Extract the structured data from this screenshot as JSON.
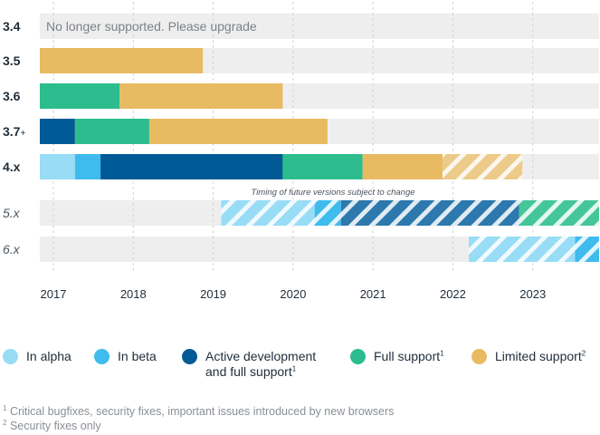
{
  "chart_data": {
    "type": "bar",
    "subtype": "timeline-gantt",
    "x_axis": {
      "ticks": [
        "2017",
        "2018",
        "2019",
        "2020",
        "2021",
        "2022",
        "2023"
      ],
      "range": [
        2016.83,
        2023.83
      ]
    },
    "grid": "vertical-dashed",
    "rows": [
      {
        "label": "3.4",
        "italic": false,
        "note": "No longer supported. Please upgrade",
        "segments": []
      },
      {
        "label": "3.5",
        "italic": false,
        "segments": [
          {
            "phase": "limited",
            "start": 2016.83,
            "end": 2018.87,
            "projected": false
          }
        ]
      },
      {
        "label": "3.6",
        "italic": false,
        "segments": [
          {
            "phase": "full",
            "start": 2016.83,
            "end": 2017.83,
            "projected": false
          },
          {
            "phase": "limited",
            "start": 2017.83,
            "end": 2019.87,
            "projected": false
          }
        ]
      },
      {
        "label": "3.7",
        "label_suffix": "+",
        "italic": false,
        "segments": [
          {
            "phase": "active",
            "start": 2016.83,
            "end": 2017.27,
            "projected": false
          },
          {
            "phase": "full",
            "start": 2017.27,
            "end": 2018.2,
            "projected": false
          },
          {
            "phase": "limited",
            "start": 2018.2,
            "end": 2020.43,
            "projected": false
          }
        ]
      },
      {
        "label": "4.x",
        "italic": false,
        "segments": [
          {
            "phase": "alpha",
            "start": 2016.83,
            "end": 2017.27,
            "projected": false
          },
          {
            "phase": "beta",
            "start": 2017.27,
            "end": 2017.59,
            "projected": false
          },
          {
            "phase": "active",
            "start": 2017.59,
            "end": 2019.87,
            "projected": false
          },
          {
            "phase": "full",
            "start": 2019.87,
            "end": 2020.87,
            "projected": false
          },
          {
            "phase": "limited",
            "start": 2020.87,
            "end": 2021.87,
            "projected": false
          },
          {
            "phase": "limited",
            "start": 2021.87,
            "end": 2022.87,
            "projected": true
          }
        ]
      },
      {
        "label": "5.x",
        "italic": true,
        "segments": [
          {
            "phase": "alpha",
            "start": 2019.1,
            "end": 2020.27,
            "projected": true
          },
          {
            "phase": "beta",
            "start": 2020.27,
            "end": 2020.6,
            "projected": true
          },
          {
            "phase": "active",
            "start": 2020.6,
            "end": 2022.83,
            "projected": true
          },
          {
            "phase": "full",
            "start": 2022.83,
            "end": 2023.83,
            "projected": true
          }
        ]
      },
      {
        "label": "6.x",
        "italic": true,
        "segments": [
          {
            "phase": "alpha",
            "start": 2022.2,
            "end": 2023.53,
            "projected": true
          },
          {
            "phase": "beta",
            "start": 2023.53,
            "end": 2023.83,
            "projected": true
          }
        ]
      }
    ],
    "annotation": "Timing of future versions subject to change"
  },
  "legend": [
    {
      "key": "alpha",
      "label": "In alpha",
      "label2": "",
      "sup": "",
      "color": "#98dcf6"
    },
    {
      "key": "beta",
      "label": "In beta",
      "label2": "",
      "sup": "",
      "color": "#3fbbee"
    },
    {
      "key": "active",
      "label": "Active development",
      "label2": "and full support",
      "sup": "1",
      "color": "#005a96"
    },
    {
      "key": "full",
      "label": "Full support",
      "label2": "",
      "sup": "1",
      "color": "#2dbc8e"
    },
    {
      "key": "limited",
      "label": "Limited support",
      "label2": "",
      "sup": "2",
      "color": "#e8bb62"
    }
  ],
  "colors": {
    "track": "#eeeeee",
    "grid": "#d2d4d6",
    "axis_text": "#1f2d3a",
    "note_text": "#7b8187"
  },
  "footnotes": [
    {
      "mark": "1",
      "text": "Critical bugfixes, security fixes, important issues introduced by new browsers"
    },
    {
      "mark": "2",
      "text": "Security fixes only"
    }
  ]
}
